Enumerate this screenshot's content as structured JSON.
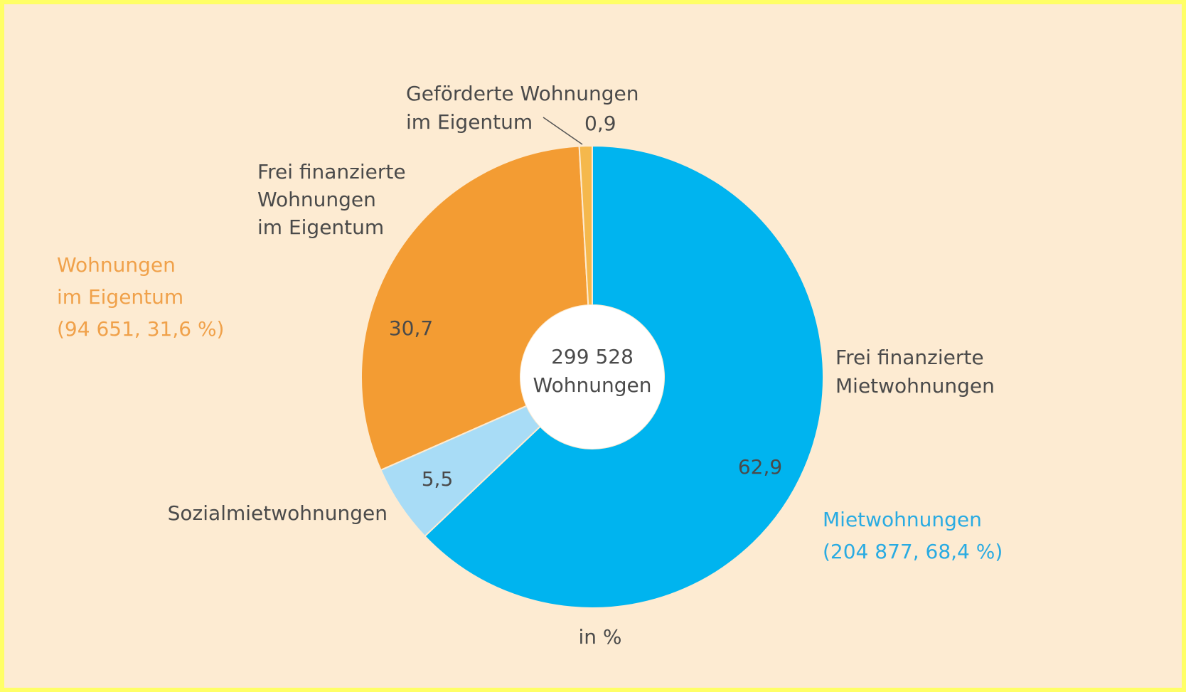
{
  "chart_data": {
    "type": "donut",
    "categories": [
      [
        "Frei finanzierte",
        "Mietwohnungen"
      ],
      [
        "Sozialmietwohnungen"
      ],
      [
        "Frei finanzierte",
        "Wohnungen",
        "im Eigentum"
      ],
      [
        "Geförderte Wohnungen",
        "im Eigentum"
      ]
    ],
    "values": [
      62.9,
      5.5,
      30.7,
      0.9
    ],
    "value_labels": [
      "62,9",
      "5,5",
      "30,7",
      "0,9"
    ],
    "colors": [
      "#00b4ef",
      "#a8dcf6",
      "#f39c33",
      "#f5b84c"
    ],
    "center_label": [
      "299 528",
      "Wohnungen"
    ],
    "groups": [
      {
        "lines": [
          "Mietwohnungen",
          "(204 877, 68,4 %)"
        ],
        "color": "#29abe2"
      },
      {
        "lines": [
          "Wohnungen",
          "im Eigentum",
          "(94 651, 31,6 %)"
        ],
        "color": "#f0a14a"
      }
    ],
    "note": "in %"
  }
}
